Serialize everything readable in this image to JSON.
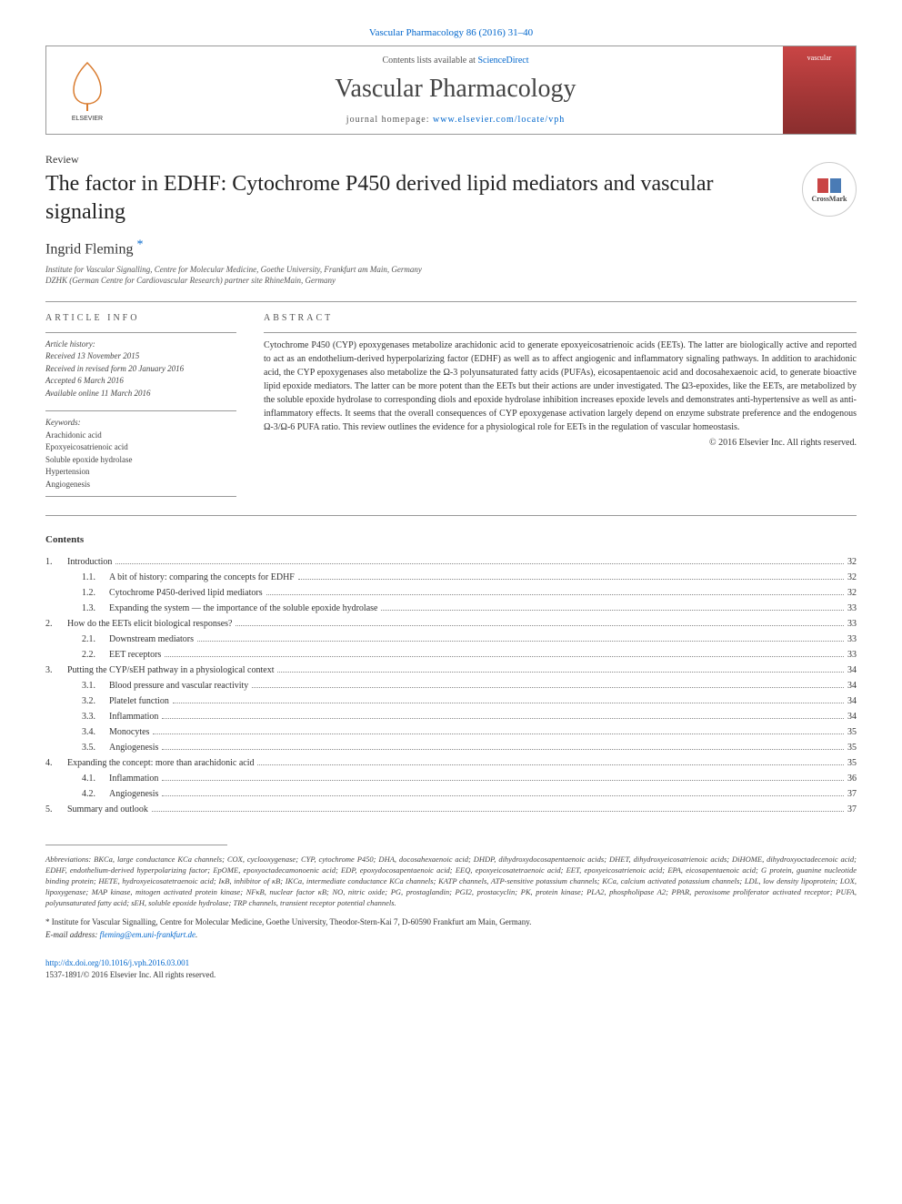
{
  "topLink": {
    "text": "Vascular Pharmacology 86 (2016) 31–40",
    "color": "#0066cc"
  },
  "header": {
    "contentsLine": {
      "prefix": "Contents lists available at ",
      "link": "ScienceDirect"
    },
    "journalName": "Vascular Pharmacology",
    "homepage": {
      "prefix": "journal homepage: ",
      "link": "www.elsevier.com/locate/vph"
    },
    "elsevierLabel": "ELSEVIER",
    "coverLabel": "vascular"
  },
  "articleType": "Review",
  "title": "The factor in EDHF: Cytochrome P450 derived lipid mediators and vascular signaling",
  "crossmark": "CrossMark",
  "author": "Ingrid Fleming ",
  "authorStar": "*",
  "affiliations": [
    "Institute for Vascular Signalling, Centre for Molecular Medicine, Goethe University, Frankfurt am Main, Germany",
    "DZHK (German Centre for Cardiovascular Research) partner site RhineMain, Germany"
  ],
  "infoLabel": "article info",
  "abstractLabel": "abstract",
  "history": {
    "label": "Article history:",
    "items": [
      "Received 13 November 2015",
      "Received in revised form 20 January 2016",
      "Accepted 6 March 2016",
      "Available online 11 March 2016"
    ]
  },
  "keywords": {
    "label": "Keywords:",
    "items": [
      "Arachidonic acid",
      "Epoxyeicosatrienoic acid",
      "Soluble epoxide hydrolase",
      "Hypertension",
      "Angiogenesis"
    ]
  },
  "abstract": "Cytochrome P450 (CYP) epoxygenases metabolize arachidonic acid to generate epoxyeicosatrienoic acids (EETs). The latter are biologically active and reported to act as an endothelium-derived hyperpolarizing factor (EDHF) as well as to affect angiogenic and inflammatory signaling pathways. In addition to arachidonic acid, the CYP epoxygenases also metabolize the Ω-3 polyunsaturated fatty acids (PUFAs), eicosapentaenoic acid and docosahexaenoic acid, to generate bioactive lipid epoxide mediators. The latter can be more potent than the EETs but their actions are under investigated. The Ω3-epoxides, like the EETs, are metabolized by the soluble epoxide hydrolase to corresponding diols and epoxide hydrolase inhibition increases epoxide levels and demonstrates anti-hypertensive as well as anti-inflammatory effects. It seems that the overall consequences of CYP epoxygenase activation largely depend on enzyme substrate preference and the endogenous Ω-3/Ω-6 PUFA ratio. This review outlines the evidence for a physiological role for EETs in the regulation of vascular homeostasis.",
  "abstractCopyright": "© 2016 Elsevier Inc. All rights reserved.",
  "contentsHeader": "Contents",
  "toc": [
    {
      "num": "1.",
      "title": "Introduction",
      "page": "32",
      "subs": [
        {
          "num": "1.1.",
          "title": "A bit of history: comparing the concepts for EDHF",
          "page": "32"
        },
        {
          "num": "1.2.",
          "title": "Cytochrome P450-derived lipid mediators",
          "page": "32"
        },
        {
          "num": "1.3.",
          "title": "Expanding the system — the importance of the soluble epoxide hydrolase",
          "page": "33"
        }
      ]
    },
    {
      "num": "2.",
      "title": "How do the EETs elicit biological responses?",
      "page": "33",
      "subs": [
        {
          "num": "2.1.",
          "title": "Downstream mediators",
          "page": "33"
        },
        {
          "num": "2.2.",
          "title": "EET receptors",
          "page": "33"
        }
      ]
    },
    {
      "num": "3.",
      "title": "Putting the CYP/sEH pathway in a physiological context",
      "page": "34",
      "subs": [
        {
          "num": "3.1.",
          "title": "Blood pressure and vascular reactivity",
          "page": "34"
        },
        {
          "num": "3.2.",
          "title": "Platelet function",
          "page": "34"
        },
        {
          "num": "3.3.",
          "title": "Inflammation",
          "page": "34"
        },
        {
          "num": "3.4.",
          "title": "Monocytes",
          "page": "35"
        },
        {
          "num": "3.5.",
          "title": "Angiogenesis",
          "page": "35"
        }
      ]
    },
    {
      "num": "4.",
      "title": "Expanding the concept: more than arachidonic acid",
      "page": "35",
      "subs": [
        {
          "num": "4.1.",
          "title": "Inflammation",
          "page": "36"
        },
        {
          "num": "4.2.",
          "title": "Angiogenesis",
          "page": "37"
        }
      ]
    },
    {
      "num": "5.",
      "title": "Summary and outlook",
      "page": "37",
      "subs": []
    }
  ],
  "abbreviations": {
    "label": "Abbreviations:",
    "text": " BKCa, large conductance KCa channels; COX, cyclooxygenase; CYP, cytochrome P450; DHA, docosahexaenoic acid; DHDP, dihydroxydocosapentaenoic acids; DHET, dihydroxyeicosatrienoic acids; DiHOME, dihydroxyoctadecenoic acid; EDHF, endothelium-derived hyperpolarizing factor; EpOME, epoxyoctadecamonoenic acid; EDP, epoxydocosapentaenoic acid; EEQ, epoxyeicosatetraenoic acid; EET, epoxyeicosatrienoic acid; EPA, eicosapentaenoic acid; G protein, guanine nucleotide binding protein; HETE, hydroxyeicosatetraenoic acid; IκB, inhibitor of κB; IKCa, intermediate conductance KCa channels; KATP channels, ATP-sensitive potassium channels; KCa, calcium activated potassium channels; LDL, low density lipoprotein; LOX, lipoxygenase; MAP kinase, mitogen activated protein kinase; NFκB, nuclear factor κB; NO, nitric oxide; PG, prostaglandin; PGI2, prostacyclin; PK, protein kinase; PLA2, phospholipase A2; PPAR, peroxisome proliferator activated receptor; PUFA, polyunsaturated fatty acid; sEH, soluble epoxide hydrolase; TRP channels, transient receptor potential channels."
  },
  "correspondence": {
    "star": "*",
    "text": " Institute for Vascular Signalling, Centre for Molecular Medicine, Goethe University, Theodor-Stern-Kai 7, D-60590 Frankfurt am Main, Germany.",
    "emailLabel": "E-mail address: ",
    "email": "fleming@em.uni-frankfurt.de"
  },
  "doi": {
    "link": "http://dx.doi.org/10.1016/j.vph.2016.03.001",
    "issn": "1537-1891/© 2016 Elsevier Inc. All rights reserved."
  },
  "colors": {
    "link": "#0066cc",
    "text": "#333333",
    "border": "#999999",
    "coverGradTop": "#c94545",
    "coverGradBottom": "#8a2e2e"
  }
}
